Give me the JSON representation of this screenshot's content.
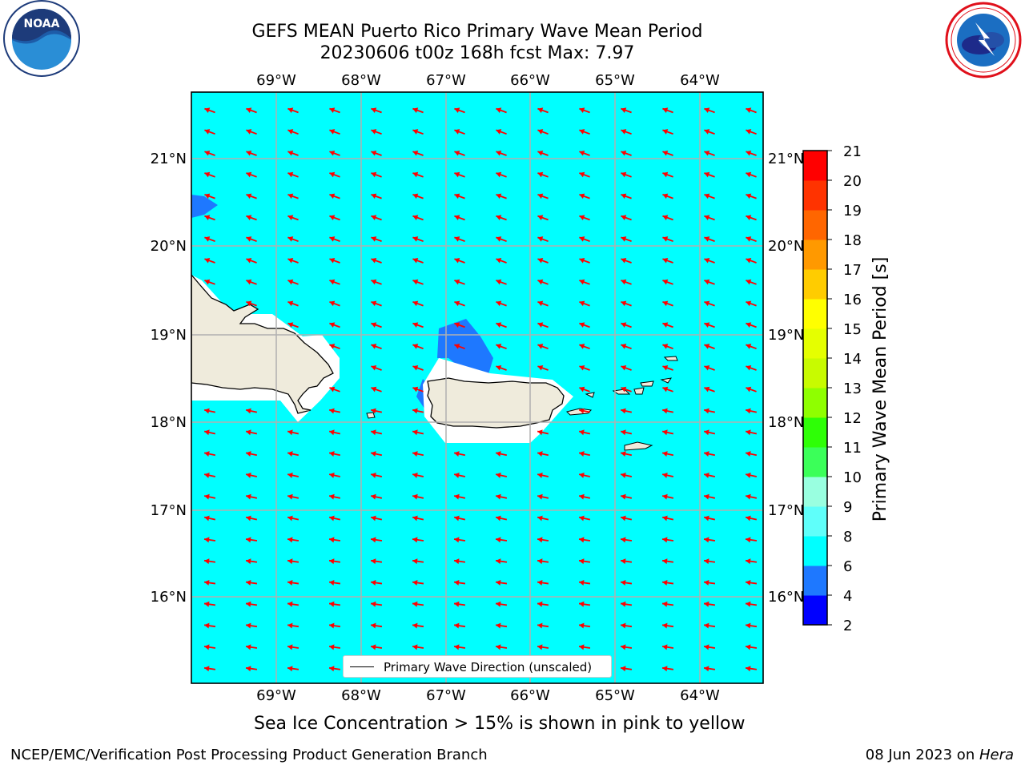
{
  "header": {
    "title_line1": "GEFS MEAN Puerto Rico Primary Wave Mean Period",
    "title_line2": "20230606 t00z 168h fcst   Max: 7.97"
  },
  "logos": {
    "left": {
      "name": "NOAA",
      "ring_text": "NATIONAL OCEANIC AND ATMOSPHERIC ADMINISTRATION · U.S. DEPARTMENT OF COMMERCE"
    },
    "right": {
      "name": "NATIONAL WEATHER SERVICE"
    }
  },
  "map": {
    "lon_ticks": [
      "69°W",
      "68°W",
      "67°W",
      "66°W",
      "65°W",
      "64°W"
    ],
    "lat_ticks": [
      "21°N",
      "20°N",
      "19°N",
      "18°N",
      "17°N",
      "16°N"
    ],
    "ocean_color": "#00ffff",
    "land_color": "#efebdc",
    "arrow_color": "#ff0000"
  },
  "colorbar": {
    "label": "Primary Wave Mean Period [s]",
    "ticks": [
      "2",
      "4",
      "6",
      "8",
      "9",
      "10",
      "11",
      "12",
      "13",
      "14",
      "15",
      "16",
      "17",
      "18",
      "19",
      "20",
      "21"
    ],
    "colors": [
      "#0000ff",
      "#1e78ff",
      "#00ffff",
      "#5ffffa",
      "#99ffe0",
      "#3bff59",
      "#2eff06",
      "#8fff00",
      "#c8fb00",
      "#e5ff00",
      "#ffff00",
      "#ffcc00",
      "#ff9900",
      "#ff6600",
      "#ff3300",
      "#ff0000"
    ]
  },
  "legend": {
    "label": "Primary Wave Direction (unscaled)"
  },
  "note": "Sea Ice Concentration > 15% is shown in pink to yellow",
  "footer": {
    "left": "NCEP/EMC/Verification Post Processing Product Generation Branch",
    "right_prefix": "08 Jun 2023 on ",
    "right_machine": "Hera"
  }
}
